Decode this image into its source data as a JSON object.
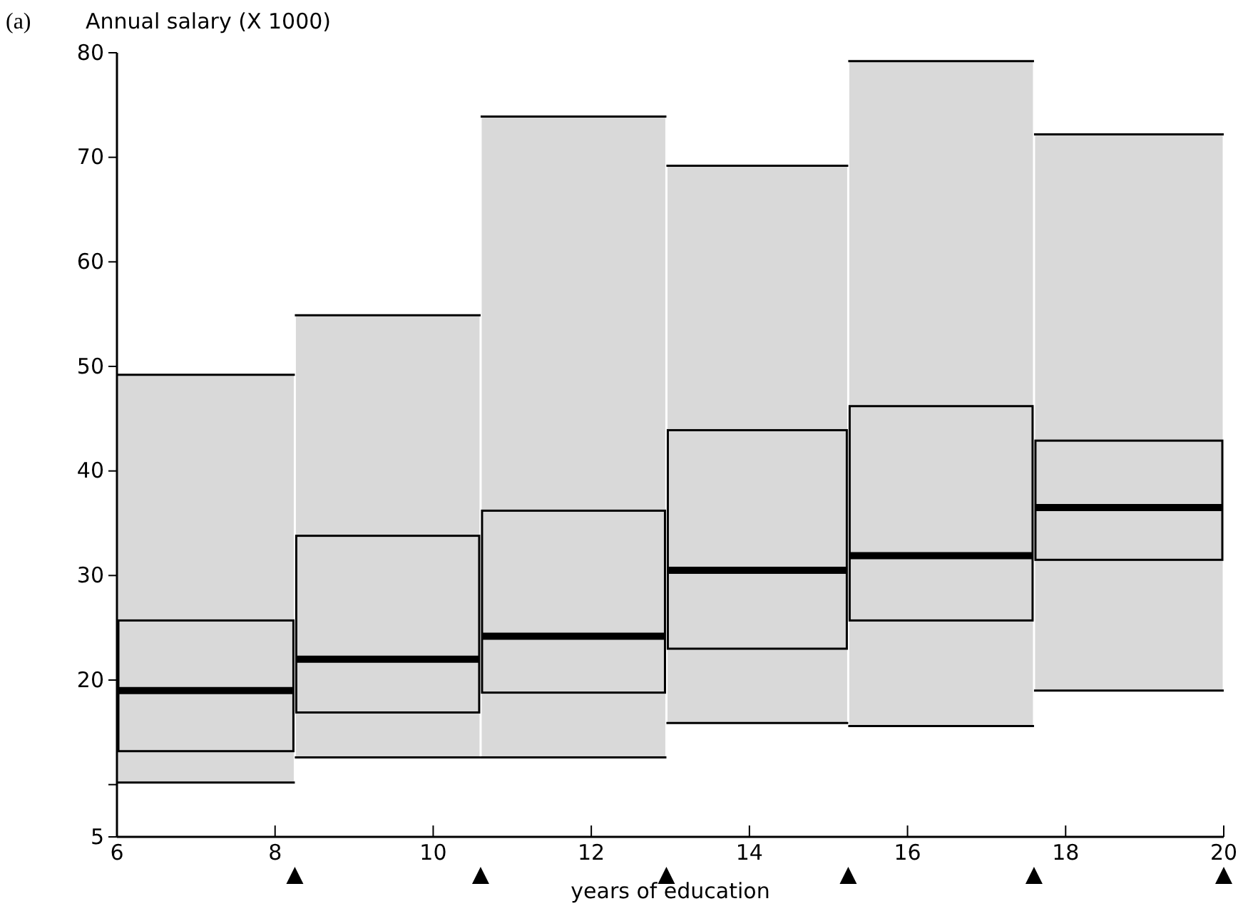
{
  "chart_data": {
    "type": "box",
    "title": "(a)",
    "ylabel": "Annual salary (X 1000)",
    "xlabel": "years of education",
    "x": [
      7.1,
      9.4,
      11.8,
      14.1,
      16.4,
      18.8
    ],
    "boxes": [
      {
        "low": 10.2,
        "q1": 13.2,
        "median": 19,
        "q3": 25.7,
        "high": 49.2
      },
      {
        "low": 12.6,
        "q1": 16.9,
        "median": 22,
        "q3": 33.8,
        "high": 54.9
      },
      {
        "low": 12.6,
        "q1": 18.8,
        "median": 24.2,
        "q3": 36.2,
        "high": 73.9
      },
      {
        "low": 15.9,
        "q1": 23,
        "median": 30.5,
        "q3": 43.9,
        "high": 69.2
      },
      {
        "low": 15.6,
        "q1": 25.7,
        "median": 31.9,
        "q3": 46.2,
        "high": 79.2
      },
      {
        "low": 19,
        "q1": 31.5,
        "median": 36.5,
        "q3": 42.9,
        "high": 72.2
      }
    ],
    "color": "#d9d9d9",
    "xlim": [
      6,
      20
    ],
    "xticks": [
      6,
      8,
      10,
      12,
      14,
      16,
      18,
      20
    ],
    "ylim": [
      5,
      80
    ],
    "yticks": [
      5,
      {
        "value": 10,
        "label": null
      },
      20,
      30,
      40,
      50,
      60,
      70,
      80
    ],
    "grid": false
  }
}
